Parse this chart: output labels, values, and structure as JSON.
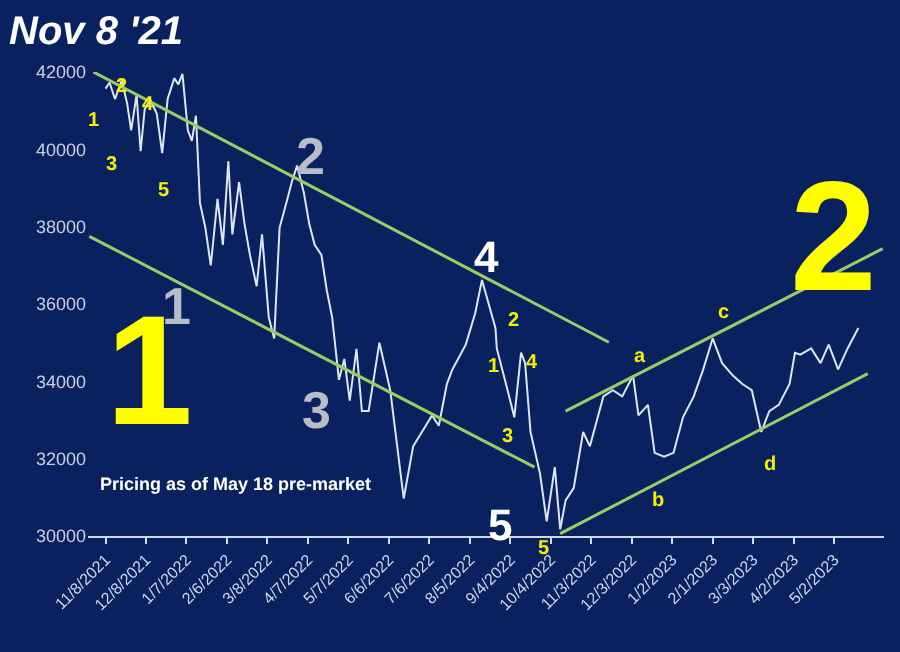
{
  "chart_data": {
    "type": "line",
    "title": "Nov 8 '21",
    "xlim": [
      "2021-10-26",
      "2023-06-08"
    ],
    "ylim": [
      30000,
      42000
    ],
    "xticks": [
      {
        "value": "2021-11-08",
        "label": "11/8/2021"
      },
      {
        "value": "2021-12-08",
        "label": "12/8/2021"
      },
      {
        "value": "2022-01-07",
        "label": "1/7/2022"
      },
      {
        "value": "2022-02-06",
        "label": "2/6/2022"
      },
      {
        "value": "2022-03-08",
        "label": "3/8/2022"
      },
      {
        "value": "2022-04-07",
        "label": "4/7/2022"
      },
      {
        "value": "2022-05-07",
        "label": "5/7/2022"
      },
      {
        "value": "2022-06-06",
        "label": "6/6/2022"
      },
      {
        "value": "2022-07-06",
        "label": "7/6/2022"
      },
      {
        "value": "2022-08-05",
        "label": "8/5/2022"
      },
      {
        "value": "2022-09-04",
        "label": "9/4/2022"
      },
      {
        "value": "2022-10-04",
        "label": "10/4/2022"
      },
      {
        "value": "2022-11-03",
        "label": "11/3/2022"
      },
      {
        "value": "2022-12-03",
        "label": "12/3/2022"
      },
      {
        "value": "2023-01-02",
        "label": "1/2/2023"
      },
      {
        "value": "2023-02-01",
        "label": "2/1/2023"
      },
      {
        "value": "2023-03-03",
        "label": "3/3/2023"
      },
      {
        "value": "2023-04-02",
        "label": "4/2/2023"
      },
      {
        "value": "2023-05-02",
        "label": "5/2/2023"
      }
    ],
    "yticks": [
      30000,
      32000,
      34000,
      36000,
      38000,
      40000,
      42000
    ],
    "grid": false,
    "marker": "none",
    "line_style": "solid",
    "series": [
      {
        "color": "#dce6f5",
        "x": [
          "2021-11-08",
          "2021-11-11",
          "2021-11-15",
          "2021-11-20",
          "2021-11-24",
          "2021-11-27",
          "2021-12-01",
          "2021-12-04",
          "2021-12-07",
          "2021-12-11",
          "2021-12-16",
          "2021-12-20",
          "2021-12-24",
          "2021-12-29",
          "2022-01-01",
          "2022-01-04",
          "2022-01-08",
          "2022-01-11",
          "2022-01-14",
          "2022-01-17",
          "2022-01-21",
          "2022-01-25",
          "2022-01-30",
          "2022-02-03",
          "2022-02-07",
          "2022-02-10",
          "2022-02-15",
          "2022-02-19",
          "2022-02-23",
          "2022-02-28",
          "2022-03-04",
          "2022-03-09",
          "2022-03-13",
          "2022-03-17",
          "2022-03-22",
          "2022-03-26",
          "2022-03-30",
          "2022-04-04",
          "2022-04-08",
          "2022-04-12",
          "2022-04-17",
          "2022-04-21",
          "2022-04-25",
          "2022-04-30",
          "2022-05-04",
          "2022-05-08",
          "2022-05-13",
          "2022-05-17",
          "2022-05-22",
          "2022-05-30",
          "2022-06-07",
          "2022-06-17",
          "2022-06-24",
          "2022-07-08",
          "2022-07-13",
          "2022-07-19",
          "2022-07-23",
          "2022-08-02",
          "2022-08-09",
          "2022-08-14",
          "2022-08-24",
          "2022-08-25",
          "2022-09-02",
          "2022-09-07",
          "2022-09-12",
          "2022-09-15",
          "2022-09-19",
          "2022-09-26",
          "2022-10-01",
          "2022-10-07",
          "2022-10-11",
          "2022-10-15",
          "2022-10-21",
          "2022-10-28",
          "2022-11-02",
          "2022-11-12",
          "2022-11-19",
          "2022-11-26",
          "2022-12-04",
          "2022-12-08",
          "2022-12-15",
          "2022-12-20",
          "2022-12-27",
          "2023-01-03",
          "2023-01-10",
          "2023-01-18",
          "2023-01-25",
          "2023-02-01",
          "2023-02-08",
          "2023-02-16",
          "2023-02-23",
          "2023-03-02",
          "2023-03-09",
          "2023-03-15",
          "2023-03-22",
          "2023-03-30",
          "2023-04-03",
          "2023-04-07",
          "2023-04-15",
          "2023-04-22",
          "2023-04-28",
          "2023-05-05",
          "2023-05-12",
          "2023-05-20"
        ],
        "values": [
          41570,
          41730,
          41300,
          41780,
          41190,
          40490,
          41410,
          39950,
          41030,
          41300,
          40920,
          39900,
          41300,
          41840,
          41680,
          41950,
          40490,
          40220,
          40870,
          38610,
          37970,
          37000,
          38720,
          37530,
          39690,
          37800,
          39150,
          38070,
          37270,
          36460,
          37800,
          35650,
          35110,
          37970,
          38610,
          39150,
          39580,
          38880,
          38070,
          37530,
          37270,
          36350,
          35650,
          34040,
          34580,
          33500,
          34840,
          33230,
          33230,
          35000,
          33770,
          30970,
          32320,
          33120,
          32850,
          33930,
          34300,
          34950,
          35760,
          36620,
          35380,
          34850,
          33770,
          33070,
          34740,
          34470,
          32690,
          31620,
          30380,
          31780,
          30170,
          30920,
          31240,
          32690,
          32320,
          33610,
          33770,
          33610,
          34150,
          33120,
          33390,
          32150,
          32050,
          32150,
          33070,
          33610,
          34310,
          35110,
          34470,
          34150,
          33930,
          33770,
          32690,
          33230,
          33390,
          33930,
          34740,
          34690,
          34850,
          34470,
          34950,
          34310,
          34850,
          35380
        ]
      },
      {
        "type": "line",
        "color": "#9ccc65",
        "x": [
          "2021-10-30",
          "2022-11-16"
        ],
        "values": [
          42000,
          35010
        ]
      },
      {
        "type": "line",
        "color": "#9ccc65",
        "x": [
          "2021-10-27",
          "2022-09-22"
        ],
        "values": [
          37750,
          31780
        ]
      },
      {
        "type": "line",
        "color": "#9ccc65",
        "x": [
          "2022-10-15",
          "2023-06-07"
        ],
        "values": [
          33230,
          37430
        ]
      },
      {
        "type": "line",
        "color": "#9ccc65",
        "x": [
          "2022-10-11",
          "2023-05-27"
        ],
        "values": [
          30060,
          34200
        ]
      }
    ],
    "annotations": [
      "1",
      "2",
      "4",
      "3",
      "5",
      "2",
      "1",
      "3",
      "4",
      "5",
      "2",
      "1",
      "4",
      "3",
      "5",
      "a",
      "b",
      "c",
      "d",
      "1",
      "2",
      "Pricing as of May 18 pre-market"
    ]
  }
}
